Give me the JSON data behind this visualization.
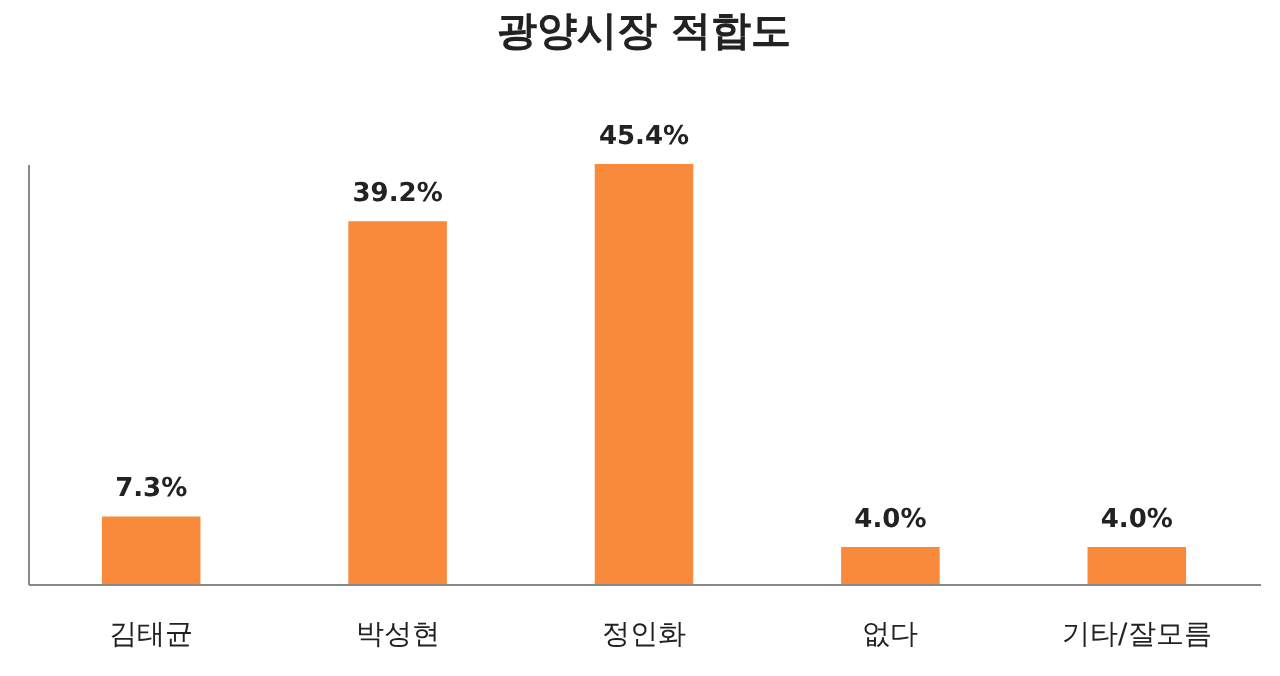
{
  "chart_data": {
    "type": "bar",
    "title": "광양시장 적합도",
    "categories": [
      "김태균",
      "박성현",
      "정인화",
      "없다",
      "기타/잘모름"
    ],
    "values": [
      7.3,
      39.2,
      45.4,
      4.0,
      4.0
    ],
    "value_labels": [
      "7.3%",
      "39.2%",
      "45.4%",
      "4.0%",
      "4.0%"
    ],
    "color": "#f98a3c",
    "grid": false,
    "tick_labels": "x"
  }
}
